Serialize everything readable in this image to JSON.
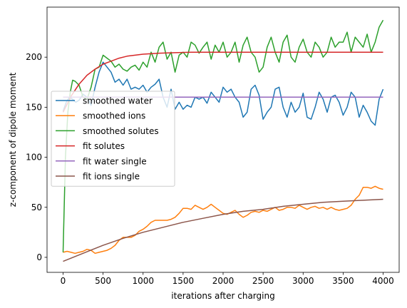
{
  "chart_data": {
    "type": "line",
    "title": "",
    "xlabel": "iterations after charging",
    "ylabel": "z-component of dipole moment",
    "xlim": [
      -200,
      4200
    ],
    "ylim": [
      -15,
      250
    ],
    "xticks": [
      0,
      500,
      1000,
      1500,
      2000,
      2500,
      3000,
      3500,
      4000
    ],
    "yticks": [
      0,
      50,
      100,
      150,
      200
    ],
    "grid": false,
    "legend_position": "center-left",
    "series": [
      {
        "name": "smoothed water",
        "color": "#1f77b4",
        "x": [
          0,
          40,
          80,
          120,
          160,
          200,
          250,
          300,
          350,
          400,
          450,
          500,
          550,
          600,
          650,
          700,
          750,
          800,
          850,
          900,
          950,
          1000,
          1050,
          1100,
          1150,
          1200,
          1250,
          1300,
          1350,
          1400,
          1450,
          1500,
          1550,
          1600,
          1650,
          1700,
          1750,
          1800,
          1850,
          1900,
          1950,
          2000,
          2050,
          2100,
          2150,
          2200,
          2250,
          2300,
          2350,
          2400,
          2450,
          2500,
          2550,
          2600,
          2650,
          2700,
          2750,
          2800,
          2850,
          2900,
          2950,
          3000,
          3050,
          3100,
          3150,
          3200,
          3250,
          3300,
          3350,
          3400,
          3450,
          3500,
          3550,
          3600,
          3650,
          3700,
          3750,
          3800,
          3850,
          3900,
          3950,
          4000
        ],
        "y": [
          146,
          155,
          160,
          158,
          155,
          157,
          163,
          160,
          152,
          170,
          185,
          195,
          190,
          185,
          175,
          178,
          172,
          178,
          168,
          170,
          168,
          172,
          165,
          170,
          173,
          178,
          160,
          150,
          168,
          148,
          155,
          148,
          152,
          150,
          160,
          158,
          160,
          154,
          165,
          160,
          155,
          170,
          165,
          168,
          160,
          155,
          140,
          145,
          168,
          172,
          162,
          138,
          145,
          150,
          168,
          170,
          150,
          140,
          155,
          145,
          150,
          164,
          140,
          138,
          150,
          165,
          158,
          145,
          160,
          162,
          155,
          142,
          150,
          165,
          160,
          140,
          152,
          145,
          136,
          132,
          158,
          168
        ]
      },
      {
        "name": "smoothed ions",
        "color": "#ff7f0e",
        "x": [
          0,
          50,
          100,
          150,
          200,
          250,
          300,
          350,
          400,
          450,
          500,
          550,
          600,
          650,
          700,
          750,
          800,
          850,
          900,
          950,
          1000,
          1050,
          1100,
          1150,
          1200,
          1250,
          1300,
          1350,
          1400,
          1450,
          1500,
          1550,
          1600,
          1650,
          1700,
          1750,
          1800,
          1850,
          1900,
          1950,
          2000,
          2050,
          2100,
          2150,
          2200,
          2250,
          2300,
          2350,
          2400,
          2450,
          2500,
          2550,
          2600,
          2650,
          2700,
          2750,
          2800,
          2850,
          2900,
          2950,
          3000,
          3050,
          3100,
          3150,
          3200,
          3250,
          3300,
          3350,
          3400,
          3450,
          3500,
          3550,
          3600,
          3650,
          3700,
          3750,
          3800,
          3850,
          3900,
          3950,
          4000
        ],
        "y": [
          5,
          6,
          5,
          4,
          5,
          6,
          8,
          7,
          4,
          5,
          6,
          7,
          9,
          12,
          17,
          20,
          20,
          20,
          22,
          26,
          28,
          31,
          35,
          37,
          37,
          37,
          37,
          38,
          40,
          44,
          49,
          49,
          48,
          52,
          50,
          48,
          50,
          53,
          50,
          47,
          44,
          43,
          45,
          47,
          43,
          40,
          42,
          45,
          46,
          45,
          47,
          46,
          48,
          50,
          47,
          48,
          50,
          50,
          49,
          52,
          50,
          48,
          50,
          51,
          49,
          50,
          48,
          50,
          48,
          47,
          48,
          49,
          52,
          58,
          62,
          70,
          70,
          69,
          71,
          69,
          68
        ]
      },
      {
        "name": "smoothed solutes",
        "color": "#2ca02c",
        "x": [
          0,
          30,
          60,
          90,
          120,
          150,
          200,
          250,
          300,
          350,
          400,
          450,
          500,
          550,
          600,
          650,
          700,
          750,
          800,
          850,
          900,
          950,
          1000,
          1050,
          1100,
          1150,
          1200,
          1250,
          1300,
          1350,
          1400,
          1450,
          1500,
          1550,
          1600,
          1650,
          1700,
          1750,
          1800,
          1850,
          1900,
          1950,
          2000,
          2050,
          2100,
          2150,
          2200,
          2250,
          2300,
          2350,
          2400,
          2450,
          2500,
          2550,
          2600,
          2650,
          2700,
          2750,
          2800,
          2850,
          2900,
          2950,
          3000,
          3050,
          3100,
          3150,
          3200,
          3250,
          3300,
          3350,
          3400,
          3450,
          3500,
          3550,
          3600,
          3650,
          3700,
          3750,
          3800,
          3850,
          3900,
          3950,
          4000
        ],
        "y": [
          5,
          100,
          145,
          165,
          177,
          176,
          172,
          160,
          158,
          170,
          188,
          190,
          202,
          199,
          196,
          190,
          193,
          188,
          186,
          190,
          192,
          187,
          195,
          190,
          205,
          195,
          210,
          215,
          198,
          205,
          185,
          202,
          205,
          200,
          215,
          212,
          204,
          210,
          215,
          198,
          212,
          205,
          215,
          200,
          205,
          215,
          195,
          212,
          220,
          205,
          200,
          185,
          190,
          210,
          220,
          205,
          195,
          215,
          222,
          200,
          195,
          210,
          218,
          205,
          200,
          215,
          210,
          200,
          205,
          220,
          210,
          215,
          215,
          225,
          205,
          220,
          215,
          210,
          223,
          205,
          215,
          230,
          237
        ]
      },
      {
        "name": "fit solutes",
        "color": "#d62728",
        "x": [
          0,
          100,
          200,
          300,
          400,
          500,
          600,
          700,
          800,
          900,
          1000,
          1200,
          1400,
          1600,
          1800,
          2000,
          2500,
          3000,
          3500,
          4000
        ],
        "y": [
          145,
          161,
          173,
          182,
          188,
          193,
          196,
          199,
          201,
          202,
          203,
          204,
          204.5,
          205,
          205,
          205,
          205,
          205,
          205,
          205
        ]
      },
      {
        "name": "fit water single",
        "color": "#9467bd",
        "x": [
          0,
          4000
        ],
        "y": [
          160,
          160
        ]
      },
      {
        "name": "fit ions single",
        "color": "#8c564b",
        "x": [
          0,
          250,
          500,
          750,
          1000,
          1250,
          1500,
          1750,
          2000,
          2250,
          2500,
          2750,
          3000,
          3250,
          3500,
          3750,
          4000
        ],
        "y": [
          -4,
          4,
          12,
          19,
          25,
          30,
          35,
          39,
          43,
          46,
          48,
          51,
          53,
          55,
          56,
          57,
          58
        ]
      }
    ]
  }
}
